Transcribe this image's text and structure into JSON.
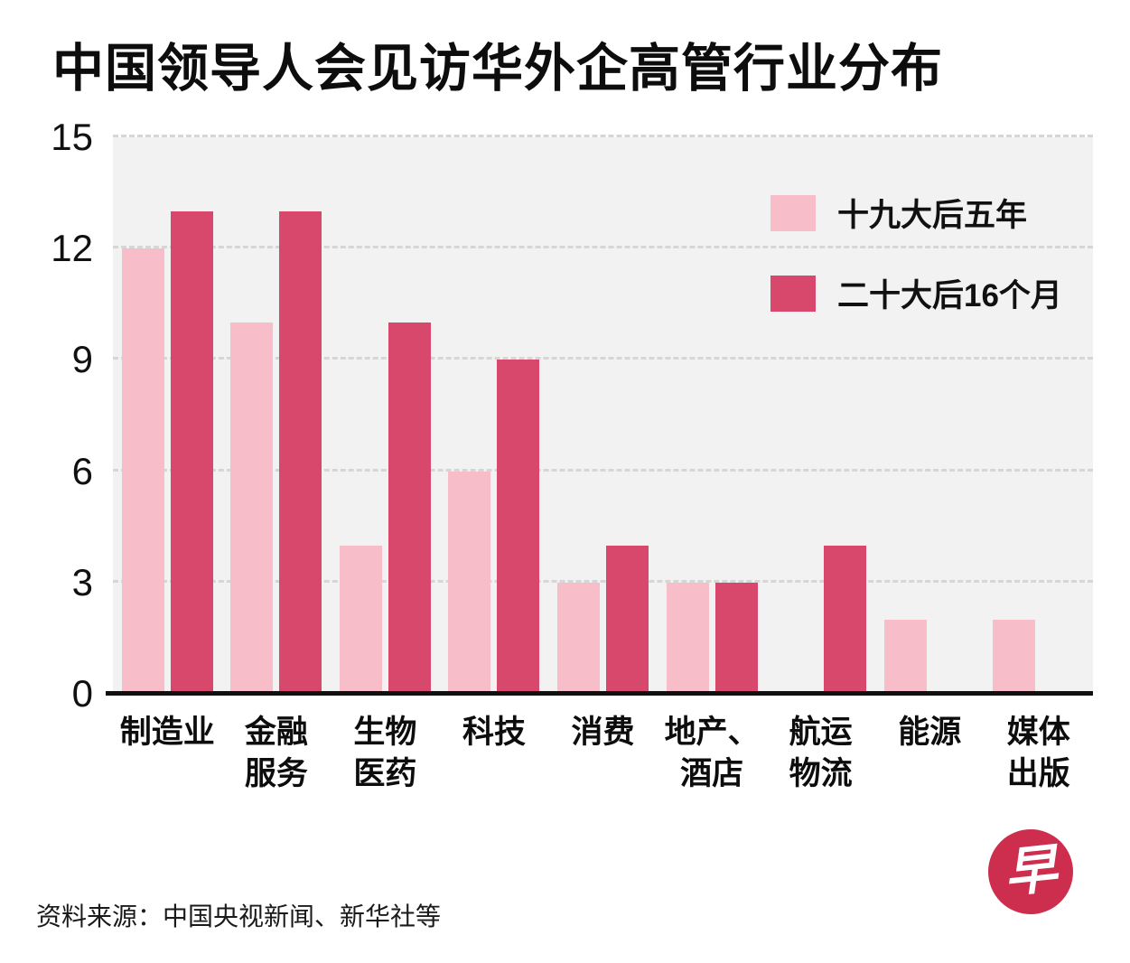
{
  "title": "中国领导人会见访华外企高管行业分布",
  "source": "资料来源：中国央视新闻、新华社等",
  "logo": {
    "char": "早"
  },
  "colors": {
    "series1": "#F7BDC9",
    "series2": "#D8486C",
    "plot_bg": "#F2F2F2",
    "grid": "#D6D6D6",
    "axis": "#101010",
    "logo": "#CE2E4E"
  },
  "chart_data": {
    "type": "bar",
    "title": "中国领导人会见访华外企高管行业分布",
    "categories": [
      "制造业",
      "金融服务",
      "生物医药",
      "科技",
      "消费",
      "地产、酒店",
      "航运物流",
      "能源",
      "媒体出版"
    ],
    "tick_label_lines": [
      [
        "制造业"
      ],
      [
        "金融",
        "服务"
      ],
      [
        "生物",
        "医药"
      ],
      [
        "科技"
      ],
      [
        "消费"
      ],
      [
        "地产、",
        "酒店"
      ],
      [
        "航运",
        "物流"
      ],
      [
        "能源"
      ],
      [
        "媒体",
        "出版"
      ]
    ],
    "series": [
      {
        "name": "十九大后五年",
        "values": [
          12,
          10,
          4,
          6,
          3,
          3,
          0,
          2,
          2
        ]
      },
      {
        "name": "二十大后16个月",
        "values": [
          13,
          13,
          10,
          9,
          4,
          3,
          4,
          0,
          0
        ]
      }
    ],
    "ylim": [
      0,
      15
    ],
    "yticks": [
      0,
      3,
      6,
      9,
      12,
      15
    ],
    "xlabel": "",
    "ylabel": "",
    "grid": "horizontal-dashed",
    "legend_position": "top-right-inside"
  }
}
